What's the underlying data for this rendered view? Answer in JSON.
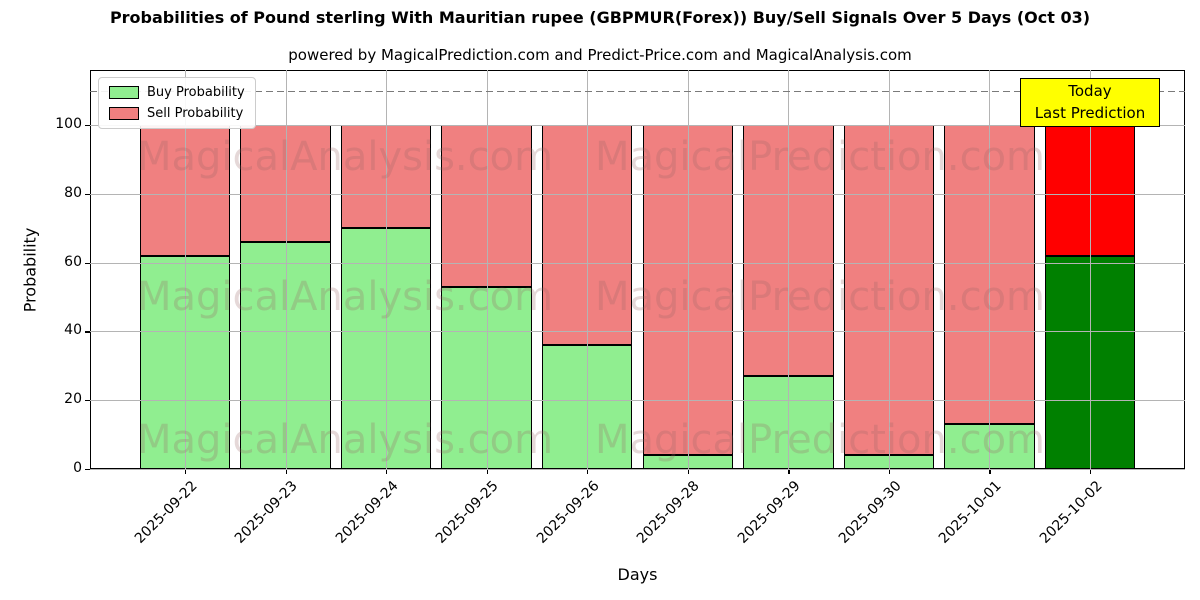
{
  "title": "Probabilities of Pound sterling With Mauritian rupee (GBPMUR(Forex)) Buy/Sell Signals Over 5 Days (Oct 03)",
  "subtitle": "powered by MagicalPrediction.com and Predict-Price.com and MagicalAnalysis.com",
  "legend": {
    "buy_label": "Buy Probability",
    "sell_label": "Sell Probability"
  },
  "annotation": {
    "line1": "Today",
    "line2": "Last Prediction"
  },
  "watermarks": {
    "left_text": "MagicalAnalysis.com",
    "right_text": "MagicalPrediction.com"
  },
  "colors": {
    "buy": "#90ee90",
    "sell": "#f08080",
    "today_buy": "#008000",
    "today_sell": "#ff0000",
    "bar_edge": "#000000",
    "grid": "#b4b4b4",
    "dashed_line": "#7a7a7a",
    "annotation_bg": "#ffff00"
  },
  "chart_data": {
    "type": "bar",
    "stacked": true,
    "title": "Probabilities of Pound sterling With Mauritian rupee (GBPMUR(Forex)) Buy/Sell Signals Over 5 Days (Oct 03)",
    "categories": [
      "2025-09-22",
      "2025-09-23",
      "2025-09-24",
      "2025-09-25",
      "2025-09-26",
      "2025-09-28",
      "2025-09-29",
      "2025-09-30",
      "2025-10-01",
      "2025-10-02"
    ],
    "series": [
      {
        "name": "Buy Probability",
        "values": [
          62,
          66,
          70,
          53,
          36,
          4,
          27,
          4,
          13,
          62
        ]
      },
      {
        "name": "Sell Probability",
        "values": [
          38,
          34,
          30,
          47,
          64,
          96,
          73,
          96,
          87,
          38
        ]
      }
    ],
    "xlabel": "Days",
    "ylabel": "Probability",
    "yticks": [
      0,
      20,
      40,
      60,
      80,
      100
    ],
    "ylim": [
      0,
      116
    ],
    "dashed_line_y": 110,
    "today_index": 9,
    "grid": true,
    "legend_position": "upper left"
  }
}
